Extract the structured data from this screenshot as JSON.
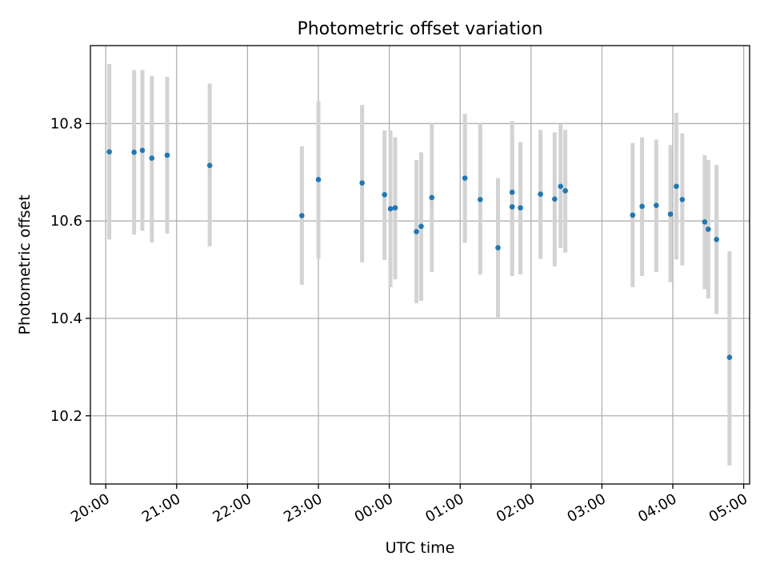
{
  "chart_data": {
    "type": "scatter",
    "title": "Photometric offset variation",
    "xlabel": "UTC time",
    "ylabel": "Photometric offset",
    "x_ticks": [
      "20:00",
      "21:00",
      "22:00",
      "23:00",
      "00:00",
      "01:00",
      "02:00",
      "03:00",
      "04:00",
      "05:00"
    ],
    "y_ticks": [
      "10.2",
      "10.4",
      "10.6",
      "10.8"
    ],
    "xlim": [
      "19:47",
      "05:05"
    ],
    "ylim": [
      10.06,
      10.96
    ],
    "grid": true,
    "colors": {
      "point": "#1f77b4",
      "errorbar": "#d3d3d3",
      "grid": "#b0b0b0"
    },
    "series": [
      {
        "x": [
          "20:03",
          "20:24",
          "20:31",
          "20:39",
          "20:52",
          "21:28",
          "22:46",
          "23:00",
          "23:37",
          "23:56",
          "00:01",
          "00:05",
          "00:23",
          "00:27",
          "00:36",
          "01:04",
          "01:17",
          "01:32",
          "01:44",
          "01:44",
          "01:51",
          "02:08",
          "02:20",
          "02:25",
          "02:29",
          "03:26",
          "03:34",
          "03:46",
          "03:58",
          "04:03",
          "04:08",
          "04:27",
          "04:30",
          "04:37",
          "04:48"
        ],
        "y": [
          10.742,
          10.741,
          10.745,
          10.729,
          10.735,
          10.714,
          10.611,
          10.685,
          10.678,
          10.654,
          10.625,
          10.627,
          10.578,
          10.589,
          10.648,
          10.688,
          10.644,
          10.545,
          10.659,
          10.629,
          10.627,
          10.655,
          10.645,
          10.671,
          10.662,
          10.612,
          10.63,
          10.632,
          10.614,
          10.671,
          10.644,
          10.598,
          10.583,
          10.562,
          10.32
        ],
        "y_low": [
          10.562,
          10.572,
          10.58,
          10.556,
          10.574,
          10.548,
          10.469,
          10.523,
          10.515,
          10.52,
          10.464,
          10.48,
          10.431,
          10.436,
          10.495,
          10.555,
          10.49,
          10.4,
          10.51,
          10.487,
          10.49,
          10.522,
          10.507,
          10.545,
          10.535,
          10.464,
          10.487,
          10.495,
          10.474,
          10.521,
          10.509,
          10.46,
          10.441,
          10.409,
          10.098
        ],
        "y_high": [
          10.922,
          10.91,
          10.91,
          10.898,
          10.896,
          10.882,
          10.753,
          10.845,
          10.838,
          10.786,
          10.786,
          10.772,
          10.725,
          10.741,
          10.8,
          10.82,
          10.8,
          10.688,
          10.805,
          10.77,
          10.762,
          10.787,
          10.782,
          10.798,
          10.787,
          10.76,
          10.772,
          10.767,
          10.756,
          10.822,
          10.78,
          10.735,
          10.725,
          10.715,
          10.538
        ]
      }
    ]
  }
}
